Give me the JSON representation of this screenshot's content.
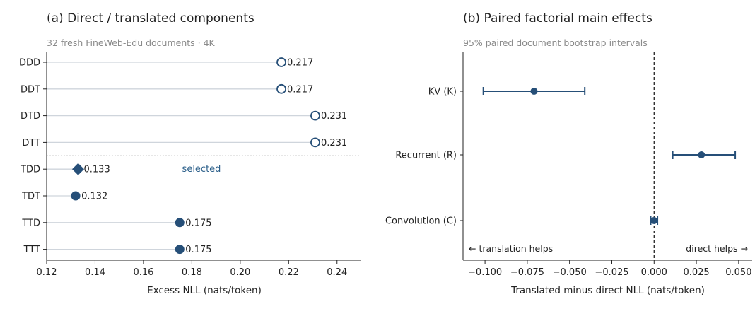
{
  "colors": {
    "accent": "#264f78",
    "grid": "#cfd5dc",
    "text": "#222222",
    "muted": "#8a8a8a"
  },
  "chart_data": [
    {
      "type": "dot",
      "title": "(a) Direct / translated components",
      "subtitle": "32 fresh FineWeb-Edu documents · 4K",
      "xlabel": "Excess NLL (nats/token)",
      "xlim": [
        0.12,
        0.25
      ],
      "xticks": [
        "0.12",
        "0.14",
        "0.16",
        "0.18",
        "0.20",
        "0.22",
        "0.24"
      ],
      "categories": [
        "DDD",
        "DDT",
        "DTD",
        "DTT",
        "TDD",
        "TDT",
        "TTD",
        "TTT"
      ],
      "values": [
        0.217,
        0.217,
        0.231,
        0.231,
        0.133,
        0.132,
        0.175,
        0.175
      ],
      "value_labels": [
        "0.217",
        "0.217",
        "0.231",
        "0.231",
        "0.133",
        "0.132",
        "0.175",
        "0.175"
      ],
      "markers": [
        "open-circle",
        "open-circle",
        "open-circle",
        "open-circle",
        "diamond",
        "filled-circle",
        "filled-circle",
        "filled-circle"
      ],
      "separator_after_index": 3,
      "annotation": "selected"
    },
    {
      "type": "errorbar",
      "title": "(b) Paired factorial main effects",
      "subtitle": "95% paired document bootstrap intervals",
      "xlabel": "Translated minus direct NLL (nats/token)",
      "xlim": [
        -0.113,
        0.058
      ],
      "xticks": [
        "−0.100",
        "−0.075",
        "−0.050",
        "−0.025",
        "0.000",
        "0.025",
        "0.050"
      ],
      "reference_line_x": 0,
      "categories": [
        "KV (K)",
        "Recurrent (R)",
        "Convolution (C)"
      ],
      "estimates": [
        -0.071,
        0.028,
        0.0
      ],
      "ci_low": [
        -0.101,
        0.011,
        -0.002
      ],
      "ci_high": [
        -0.041,
        0.048,
        0.002
      ],
      "annotations": {
        "left": "← translation helps",
        "right": "direct helps →"
      }
    }
  ]
}
